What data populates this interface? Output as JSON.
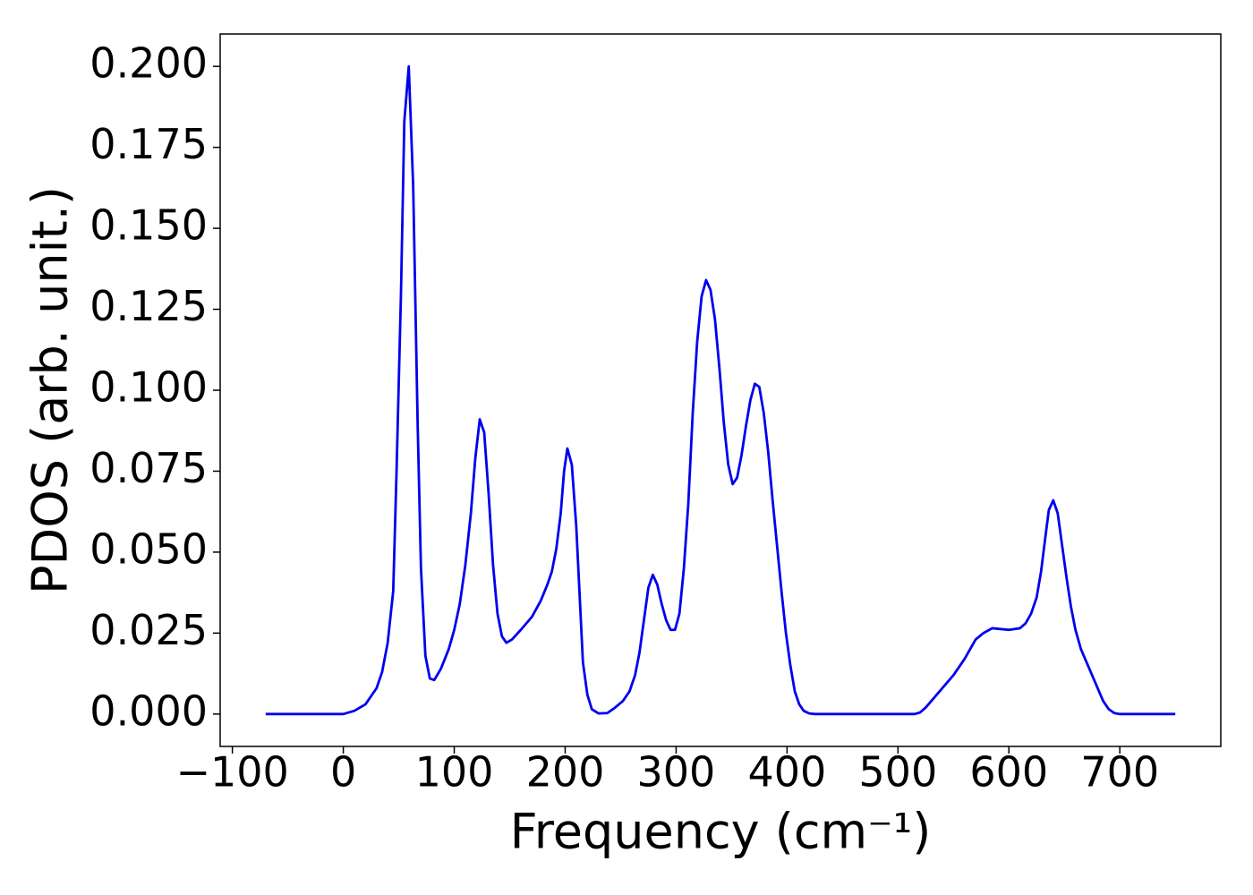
{
  "chart_data": {
    "type": "line",
    "xlabel": "Frequency (cm⁻¹)",
    "ylabel": "PDOS (arb. unit.)",
    "color": "#0000ee",
    "xlim": [
      -111,
      791
    ],
    "ylim": [
      -0.01,
      0.21
    ],
    "xticks": [
      {
        "value": -100,
        "label": "−100"
      },
      0,
      100,
      200,
      300,
      400,
      500,
      600,
      700
    ],
    "yticks": [
      {
        "value": 0,
        "label": "0.000"
      },
      {
        "value": 0.025,
        "label": "0.025"
      },
      {
        "value": 0.05,
        "label": "0.050"
      },
      {
        "value": 0.075,
        "label": "0.075"
      },
      {
        "value": 0.1,
        "label": "0.100"
      },
      {
        "value": 0.125,
        "label": "0.125"
      },
      {
        "value": 0.15,
        "label": "0.150"
      },
      {
        "value": 0.175,
        "label": "0.175"
      },
      {
        "value": 0.2,
        "label": "0.200"
      }
    ],
    "grid": false,
    "x": [
      -70,
      -40,
      -10,
      0,
      10,
      20,
      30,
      35,
      40,
      45,
      48,
      52,
      55,
      59,
      63,
      67,
      70,
      74,
      78,
      82,
      88,
      95,
      100,
      105,
      110,
      115,
      119,
      123,
      127,
      131,
      135,
      139,
      143,
      147,
      152,
      160,
      170,
      178,
      184,
      188,
      192,
      196,
      199,
      202,
      206,
      210,
      213,
      216,
      220,
      224,
      230,
      238,
      245,
      252,
      258,
      263,
      267,
      271,
      275,
      279,
      283,
      287,
      291,
      295,
      299,
      303,
      307,
      311,
      315,
      319,
      323,
      327,
      331,
      335,
      339,
      343,
      347,
      351,
      355,
      359,
      363,
      367,
      371,
      375,
      379,
      383,
      387,
      391,
      395,
      399,
      403,
      407,
      411,
      415,
      420,
      425,
      470,
      515,
      520,
      525,
      530,
      540,
      550,
      560,
      570,
      577,
      585,
      600,
      610,
      615,
      620,
      625,
      629,
      633,
      636,
      640,
      644,
      648,
      652,
      656,
      660,
      665,
      670,
      680,
      685,
      690,
      695,
      700,
      750
    ],
    "values": [
      0,
      0,
      0,
      0,
      0.001,
      0.003,
      0.008,
      0.013,
      0.022,
      0.038,
      0.075,
      0.13,
      0.183,
      0.2,
      0.163,
      0.09,
      0.045,
      0.018,
      0.011,
      0.0105,
      0.014,
      0.02,
      0.026,
      0.034,
      0.046,
      0.062,
      0.079,
      0.091,
      0.087,
      0.068,
      0.046,
      0.031,
      0.024,
      0.022,
      0.023,
      0.026,
      0.03,
      0.035,
      0.04,
      0.044,
      0.051,
      0.062,
      0.075,
      0.082,
      0.077,
      0.058,
      0.037,
      0.016,
      0.006,
      0.0015,
      0.0002,
      0.0003,
      0.002,
      0.004,
      0.007,
      0.012,
      0.019,
      0.029,
      0.039,
      0.043,
      0.04,
      0.034,
      0.029,
      0.026,
      0.026,
      0.031,
      0.045,
      0.065,
      0.093,
      0.115,
      0.129,
      0.134,
      0.131,
      0.122,
      0.107,
      0.09,
      0.077,
      0.071,
      0.073,
      0.08,
      0.089,
      0.097,
      0.102,
      0.101,
      0.093,
      0.081,
      0.066,
      0.052,
      0.038,
      0.025,
      0.015,
      0.007,
      0.003,
      0.001,
      0.0002,
      0,
      0,
      0,
      0.0005,
      0.002,
      0.004,
      0.008,
      0.012,
      0.017,
      0.023,
      0.025,
      0.0265,
      0.026,
      0.0265,
      0.028,
      0.031,
      0.036,
      0.044,
      0.055,
      0.063,
      0.066,
      0.062,
      0.052,
      0.042,
      0.033,
      0.026,
      0.02,
      0.016,
      0.008,
      0.004,
      0.0015,
      0.0003,
      0,
      0
    ]
  }
}
